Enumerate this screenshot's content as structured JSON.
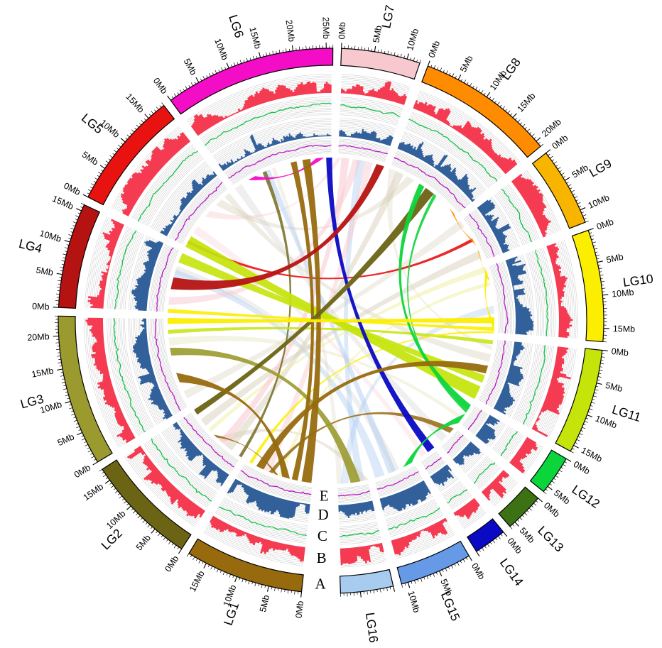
{
  "chart_data": {
    "type": "circos",
    "title": "",
    "description": "Circular genome (Circos) plot: 16 linkage-group ideograms with Mb scales, four concentric data tracks and syntenic link ribbons",
    "unit": "Mb",
    "ticks": {
      "minor_interval_mb": 0.5,
      "mid_interval_mb": 1,
      "major_interval_mb": 5,
      "label_suffix": "Mb"
    },
    "track_labels": [
      "A",
      "B",
      "C",
      "D",
      "E"
    ],
    "segments": [
      {
        "name": "LG1",
        "size_mb": 18,
        "color": "#976A0E",
        "tick_labels": true
      },
      {
        "name": "LG2",
        "size_mb": 17,
        "color": "#6B6414",
        "tick_labels": true
      },
      {
        "name": "LG3",
        "size_mb": 23,
        "color": "#9A9A2E",
        "tick_labels": true
      },
      {
        "name": "LG4",
        "size_mb": 16,
        "color": "#B51311",
        "tick_labels": true
      },
      {
        "name": "LG5",
        "size_mb": 18,
        "color": "#E81210",
        "tick_labels": true
      },
      {
        "name": "LG6",
        "size_mb": 26,
        "color": "#F40DC6",
        "tick_labels": true
      },
      {
        "name": "LG7",
        "size_mb": 12,
        "color": "#F8C8CF",
        "tick_labels": true
      },
      {
        "name": "LG8",
        "size_mb": 21,
        "color": "#FF8C00",
        "tick_labels": true
      },
      {
        "name": "LG9",
        "size_mb": 12,
        "color": "#F7B500",
        "tick_labels": true
      },
      {
        "name": "LG10",
        "size_mb": 17,
        "color": "#FCEE00",
        "tick_labels": true
      },
      {
        "name": "LG11",
        "size_mb": 16,
        "color": "#C4E40A",
        "tick_labels": true
      },
      {
        "name": "LG12",
        "size_mb": 6,
        "color": "#0CD53B",
        "tick_labels": true
      },
      {
        "name": "LG13",
        "size_mb": 6,
        "color": "#3D7214",
        "tick_labels": true
      },
      {
        "name": "LG14",
        "size_mb": 5,
        "color": "#0A0AC4",
        "tick_labels": true
      },
      {
        "name": "LG15",
        "size_mb": 11,
        "color": "#6699E6",
        "tick_labels": true
      },
      {
        "name": "LG16",
        "size_mb": 8,
        "color": "#A8CCF0",
        "tick_labels": false
      }
    ],
    "tracks": [
      {
        "id": "A",
        "label": "A",
        "type": "ideogram"
      },
      {
        "id": "B",
        "label": "B",
        "type": "histogram",
        "color": "#F43B52",
        "seed": 7
      },
      {
        "id": "C",
        "label": "C",
        "type": "line",
        "color": "#16C24A",
        "seed": 3,
        "center": 0.55,
        "amp": 0.1
      },
      {
        "id": "D",
        "label": "D",
        "type": "histogram",
        "color": "#31609B",
        "seed": 13
      },
      {
        "id": "E",
        "label": "E",
        "type": "line",
        "color": "#B819C6",
        "seed": 5,
        "center": 0.5,
        "amp": 0.09
      }
    ],
    "links": [
      {
        "s": "LG7",
        "s0": 0,
        "s1": 1,
        "t": "LG5",
        "t0": 9,
        "t1": 11,
        "c": "#F8C8CF",
        "o": 0.4
      },
      {
        "s": "LG7",
        "s0": 1,
        "s1": 3,
        "t": "LG2",
        "t0": 5,
        "t1": 7,
        "c": "#F8C8CF",
        "o": 0.55
      },
      {
        "s": "LG7",
        "s0": 4,
        "s1": 6,
        "t": "LG4",
        "t0": 2,
        "t1": 4,
        "c": "#F8C8CF",
        "o": 0.5
      },
      {
        "s": "LG7",
        "s0": 7,
        "s1": 9,
        "t": "LG1",
        "t0": 11,
        "t1": 13,
        "c": "#F8C8CF",
        "o": 0.45
      },
      {
        "s": "LG5",
        "s0": 4,
        "s1": 6,
        "t": "LG14",
        "t0": 2.5,
        "t1": 4,
        "c": "#F8C8CF",
        "o": 0.3
      },
      {
        "s": "LG15",
        "s0": 5,
        "s1": 7,
        "t": "LG6",
        "t0": 8.5,
        "t1": 10,
        "c": "#A8C8F0",
        "o": 0.45
      },
      {
        "s": "LG16",
        "s0": 1,
        "s1": 3,
        "t": "LG7",
        "t0": 5,
        "t1": 7,
        "c": "#A8C8F0",
        "o": 0.4
      },
      {
        "s": "LG15",
        "s0": 8,
        "s1": 10.5,
        "t": "LG4",
        "t0": 9,
        "t1": 11,
        "c": "#A8C8F0",
        "o": 0.4
      },
      {
        "s": "LG16",
        "s0": 5,
        "s1": 7,
        "t": "LG10",
        "t0": 10,
        "t1": 12,
        "c": "#A8C8F0",
        "o": 0.35
      },
      {
        "s": "LG2",
        "s0": 3,
        "s1": 5,
        "t": "LG8",
        "t0": 2,
        "t1": 4,
        "c": "#D8CFBA",
        "o": 0.5
      },
      {
        "s": "LG2",
        "s0": 12,
        "s1": 14,
        "t": "LG9",
        "t0": 9,
        "t1": 11,
        "c": "#D8CFBA",
        "o": 0.5
      },
      {
        "s": "LG2",
        "s0": 6,
        "s1": 8,
        "t": "LG16",
        "t0": 0,
        "t1": 2,
        "c": "#D8CFBA",
        "o": 0.45
      },
      {
        "s": "LG5",
        "s0": 13,
        "s1": 15,
        "t": "LG8",
        "t0": 5,
        "t1": 7,
        "c": "#D8CFBA",
        "o": 0.4
      },
      {
        "s": "LG5",
        "s0": 16,
        "s1": 17.5,
        "t": "LG11",
        "t0": 4,
        "t1": 6,
        "c": "#D8CFBA",
        "o": 0.4
      },
      {
        "s": "LG3",
        "s0": 2,
        "s1": 4,
        "t": "LG9",
        "t0": 0,
        "t1": 2,
        "c": "#D8CFBA",
        "o": 0.35
      },
      {
        "s": "LG8",
        "s0": 0,
        "s1": 2,
        "t": "LG11",
        "t0": 2,
        "t1": 3,
        "c": "#D8CFBA",
        "o": 0.3
      },
      {
        "s": "LG6",
        "s0": 10.5,
        "s1": 11.5,
        "t": "LG16",
        "t0": 6.5,
        "t1": 8,
        "c": "#D8CFBA",
        "o": 0.3
      },
      {
        "s": "LG10",
        "s0": 0,
        "s1": 1.5,
        "t": "LG2",
        "t0": 10,
        "t1": 11,
        "c": "#EFEFA0",
        "o": 0.5
      },
      {
        "s": "LG10",
        "s0": 4,
        "s1": 5,
        "t": "LG1",
        "t0": 8,
        "t1": 9,
        "c": "#EFEFA0",
        "o": 0.5
      },
      {
        "s": "LG3",
        "s0": 16,
        "s1": 18,
        "t": "LG12",
        "t0": 4,
        "t1": 5,
        "c": "#E3E3BC",
        "o": 0.4
      },
      {
        "s": "LG6",
        "s0": 0,
        "s1": 2,
        "t": "LG13",
        "t0": 3,
        "t1": 5,
        "c": "#C9C9C9",
        "o": 0.3
      },
      {
        "s": "LG4",
        "s0": 10,
        "s1": 12,
        "t": "LG15",
        "t0": 4,
        "t1": 6,
        "c": "#C9C9C9",
        "o": 0.3
      },
      {
        "s": "LG2",
        "s0": 0,
        "s1": 0.8,
        "t": "LG6",
        "t0": 8,
        "t1": 9,
        "c": "#6B6414",
        "o": 0.8
      },
      {
        "s": "LG11",
        "s0": 0.5,
        "s1": 1.5,
        "t": "LG3",
        "t0": 19,
        "t1": 20,
        "c": "#C4E40A",
        "o": 0.85
      },
      {
        "s": "LG10",
        "s0": 16.5,
        "s1": 17,
        "t": "LG1",
        "t0": 16.2,
        "t1": 17,
        "c": "#FCEE00",
        "o": 0.85
      },
      {
        "s": "LG1",
        "s0": 10.5,
        "s1": 11.5,
        "t": "LG13",
        "t0": 0.5,
        "t1": 2,
        "c": "#976A0E",
        "o": 0.85
      },
      {
        "s": "LG5",
        "s0": 1,
        "s1": 1.8,
        "t": "LG9",
        "t0": 5.5,
        "t1": 6.3,
        "c": "#E81210",
        "o": 0.9
      },
      {
        "s": "LG12",
        "s0": 2,
        "s1": 2.8,
        "t": "LG8",
        "t0": 13,
        "t1": 13.8,
        "c": "#0CD53B",
        "o": 0.9
      },
      {
        "s": "LG9",
        "s0": 8.5,
        "s1": 9.5,
        "t": "LG10",
        "t0": 3,
        "t1": 4,
        "c": "#F7B500",
        "o": 0.9
      },
      {
        "s": "LG8",
        "s0": 18.5,
        "s1": 20,
        "t": "LG9",
        "t0": 6,
        "t1": 7.5,
        "c": "#FF8C00",
        "o": 0.9
      },
      {
        "s": "LG11",
        "s0": 9.5,
        "s1": 11.5,
        "t": "LG4",
        "t0": 13,
        "t1": 15.5,
        "c": "#C4E40A",
        "o": 0.9
      },
      {
        "s": "LG10",
        "s0": 15.5,
        "s1": 16.4,
        "t": "LG4",
        "t0": 0,
        "t1": 1,
        "c": "#FCEE00",
        "o": 0.9
      },
      {
        "s": "LG1",
        "s0": 9,
        "s1": 10,
        "t": "LG2",
        "t0": 8,
        "t1": 9,
        "c": "#976A0E",
        "o": 0.9
      },
      {
        "s": "LG3",
        "s0": 13.5,
        "s1": 15.5,
        "t": "LG16",
        "t0": 2,
        "t1": 4.5,
        "c": "#9A9A2E",
        "o": 0.9
      },
      {
        "s": "LG6",
        "s0": 4,
        "s1": 6,
        "t": "LG6",
        "t0": 22,
        "t1": 24,
        "c": "#F40DC6",
        "o": 0.95
      },
      {
        "s": "LG1",
        "s0": 0.5,
        "s1": 3,
        "t": "LG6",
        "t0": 18.5,
        "t1": 20.5,
        "c": "#976A0E",
        "o": 0.95
      },
      {
        "s": "LG1",
        "s0": 4,
        "s1": 5.5,
        "t": "LG6",
        "t0": 15.5,
        "t1": 17,
        "c": "#976A0E",
        "o": 0.95
      },
      {
        "s": "LG14",
        "s0": 0,
        "s1": 2,
        "t": "LG6",
        "t0": 24.5,
        "t1": 26,
        "c": "#0A0AC4",
        "o": 0.95
      },
      {
        "s": "LG4",
        "s0": 6,
        "s1": 9,
        "t": "LG7",
        "t0": 10,
        "t1": 12,
        "c": "#B51311",
        "o": 0.95
      },
      {
        "s": "LG2",
        "s0": 15.5,
        "s1": 17,
        "t": "LG8",
        "t0": 10.5,
        "t1": 13,
        "c": "#6B6414",
        "o": 0.95
      },
      {
        "s": "LG12",
        "s0": 0.5,
        "s1": 2,
        "t": "LG8",
        "t0": 8.5,
        "t1": 10,
        "c": "#0CD53B",
        "o": 0.95
      },
      {
        "s": "LG12",
        "s0": 3,
        "s1": 6,
        "t": "LG15",
        "t0": 0.5,
        "t1": 3,
        "c": "#0CD53B",
        "o": 0.95
      },
      {
        "s": "LG11",
        "s0": 12.5,
        "s1": 16,
        "t": "LG5",
        "t0": 0,
        "t1": 3,
        "c": "#C4E40A",
        "o": 0.92
      },
      {
        "s": "LG10",
        "s0": 0.5,
        "s1": 2.5,
        "t": "LG10",
        "t0": 14.5,
        "t1": 16.5,
        "c": "#FCEE00",
        "o": 0.95
      },
      {
        "s": "LG10",
        "s0": 13,
        "s1": 14.5,
        "t": "LG3",
        "t0": 21.5,
        "t1": 23,
        "c": "#FCEE00",
        "o": 0.95
      },
      {
        "s": "LG1",
        "s0": 6,
        "s1": 8,
        "t": "LG3",
        "t0": 6.5,
        "t1": 9,
        "c": "#976A0E",
        "o": 0.95
      },
      {
        "s": "LG1",
        "s0": 13,
        "s1": 15,
        "t": "LG11",
        "t0": 7,
        "t1": 9,
        "c": "#976A0E",
        "o": 0.95
      }
    ]
  },
  "style": {
    "background": "#FFFFFF",
    "grid_color": "#CCCCCC",
    "tick_color": "#000000",
    "label_color": "#000000",
    "segment_border": "#000000"
  }
}
